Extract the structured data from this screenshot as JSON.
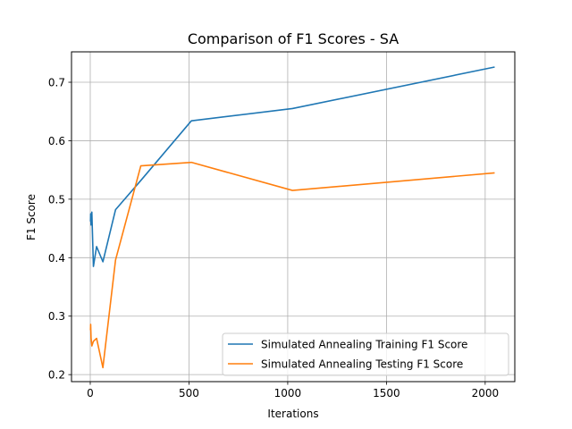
{
  "chart_data": {
    "type": "line",
    "title": "Comparison of F1 Scores - SA",
    "xlabel": "Iterations",
    "ylabel": "F1 Score",
    "xlim": [
      -95,
      2150
    ],
    "ylim": [
      0.188,
      0.752
    ],
    "xticks": [
      0,
      500,
      1000,
      1500,
      2000
    ],
    "yticks": [
      0.2,
      0.3,
      0.4,
      0.5,
      0.6,
      0.7
    ],
    "ytick_labels": [
      "0.2",
      "0.3",
      "0.4",
      "0.5",
      "0.6",
      "0.7"
    ],
    "grid": true,
    "legend_position": "lower-right",
    "series": [
      {
        "name": "Simulated Annealing Training F1 Score",
        "color": "#1f77b4",
        "x": [
          1,
          2,
          4,
          8,
          16,
          32,
          64,
          128,
          256,
          512,
          1024,
          2048
        ],
        "y": [
          0.462,
          0.475,
          0.456,
          0.478,
          0.385,
          0.419,
          0.393,
          0.482,
          0.532,
          0.634,
          0.655,
          0.726
        ]
      },
      {
        "name": "Simulated Annealing Testing F1 Score",
        "color": "#ff7f0e",
        "x": [
          1,
          2,
          4,
          8,
          16,
          32,
          64,
          128,
          256,
          512,
          1024,
          2048
        ],
        "y": [
          0.276,
          0.286,
          0.263,
          0.249,
          0.257,
          0.262,
          0.212,
          0.396,
          0.557,
          0.563,
          0.515,
          0.545
        ]
      }
    ]
  }
}
